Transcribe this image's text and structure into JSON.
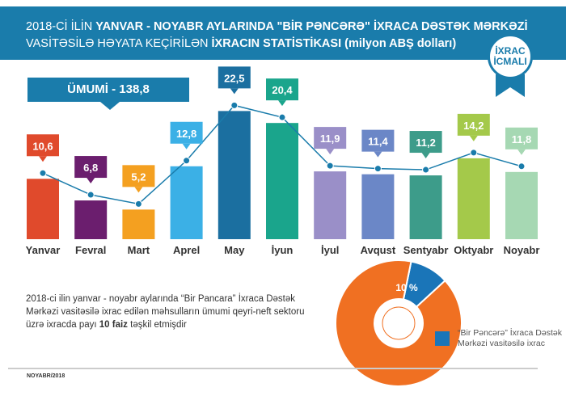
{
  "header": {
    "line1_a": "2018-Cİ İLİN ",
    "line1_b": "YANVAR - NOYABR AYLARINDA \"BİR PƏNCƏRƏ\" İXRACA DƏSTƏK MƏRKƏZİ",
    "line2_a": "VASİTƏSİLƏ HƏYATA KEÇİRİLƏN ",
    "line2_b": "İXRACIN STATİSTİKASI",
    "line2_c": " (milyon ABŞ dolları)"
  },
  "badge": {
    "line1": "İXRAC",
    "line2": "İCMALI"
  },
  "total_label": "ÜMUMİ - 138,8",
  "chart_data": {
    "type": "bar",
    "title": "İxracın statistikası (milyon ABŞ dolları)",
    "categories": [
      "Yanvar",
      "Fevral",
      "Mart",
      "Aprel",
      "May",
      "İyun",
      "İyul",
      "Avqust",
      "Sentyabr",
      "Oktyabr",
      "Noyabr"
    ],
    "values": [
      10.6,
      6.8,
      5.2,
      12.8,
      22.5,
      20.4,
      11.9,
      11.4,
      11.2,
      14.2,
      11.8
    ],
    "labels": [
      "10,6",
      "6,8",
      "5,2",
      "12,8",
      "22,5",
      "20,4",
      "11,9",
      "11,4",
      "11,2",
      "14,2",
      "11,8"
    ],
    "colors": [
      "#e04a2c",
      "#6b1e6e",
      "#f4a020",
      "#3bb0e6",
      "#1b6fa0",
      "#1aa58c",
      "#9a8fc8",
      "#6b87c7",
      "#3d9c8a",
      "#a4c94a",
      "#a6d8b3"
    ],
    "line_color": "#1a7cab",
    "ylim": [
      0,
      24
    ]
  },
  "donut": {
    "type": "pie",
    "share_label": "10 %",
    "values": [
      10,
      90
    ],
    "colors": [
      "#1a75b8",
      "#f07022"
    ]
  },
  "note": {
    "text_a": "2018-ci ilin yanvar - noyabr aylarında “Bir Pancara” İxraca Dəstək Mərkəzi vasitəsilə ixrac edilən məhsulların ümumi qeyri-neft sektoru üzrə ixracda payı ",
    "bold": "10 faiz",
    "text_b": " təşkil etmişdir"
  },
  "legend": "“Bir Pəncərə” İxraca Dəstək Mərkəzi vasitəsilə ixrac",
  "footer": "NOYABR/2018"
}
